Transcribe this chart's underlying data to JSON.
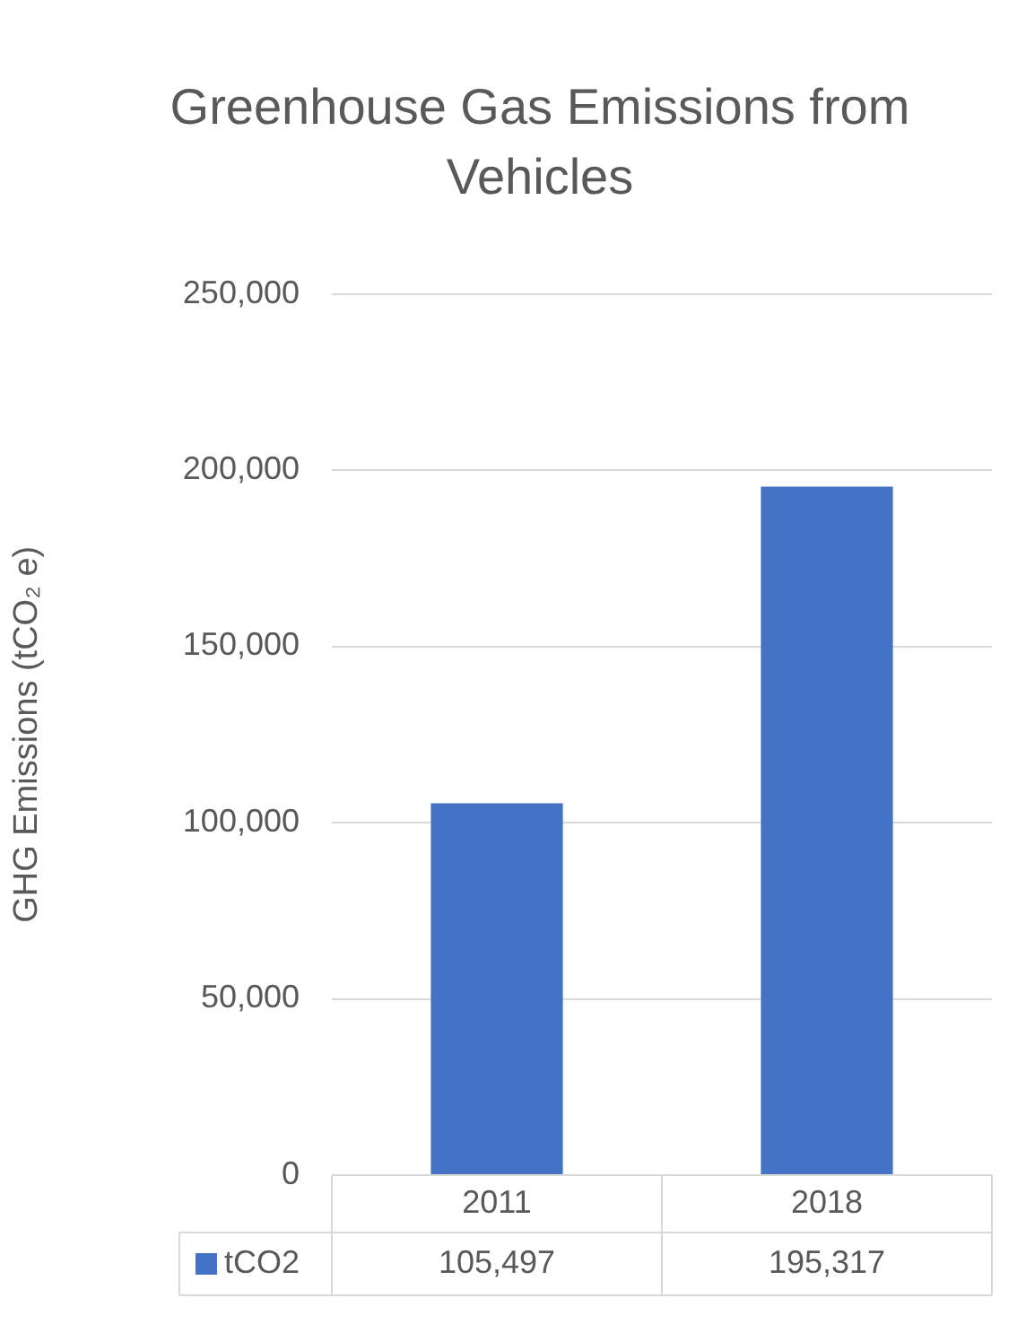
{
  "chart_data": {
    "type": "bar",
    "title": "Greenhouse Gas Emissions from Vehicles",
    "ylabel": "GHG Emissions (tCO₂ e)",
    "categories": [
      "2011",
      "2018"
    ],
    "series": [
      {
        "name": "tCO2",
        "color": "#4472c4",
        "values": [
          105497,
          195317
        ],
        "value_labels": [
          "105,497",
          "195,317"
        ]
      }
    ],
    "ylim": [
      0,
      250000
    ],
    "yticks": [
      0,
      {
        "value": 50000,
        "label": "50,000"
      },
      {
        "value": 100000,
        "label": "100,000"
      },
      {
        "value": 150000,
        "label": "150,000"
      },
      {
        "value": 200000,
        "label": "200,000"
      },
      {
        "value": 250000,
        "label": "250,000"
      }
    ],
    "grid": "y",
    "legend": "bottom"
  }
}
